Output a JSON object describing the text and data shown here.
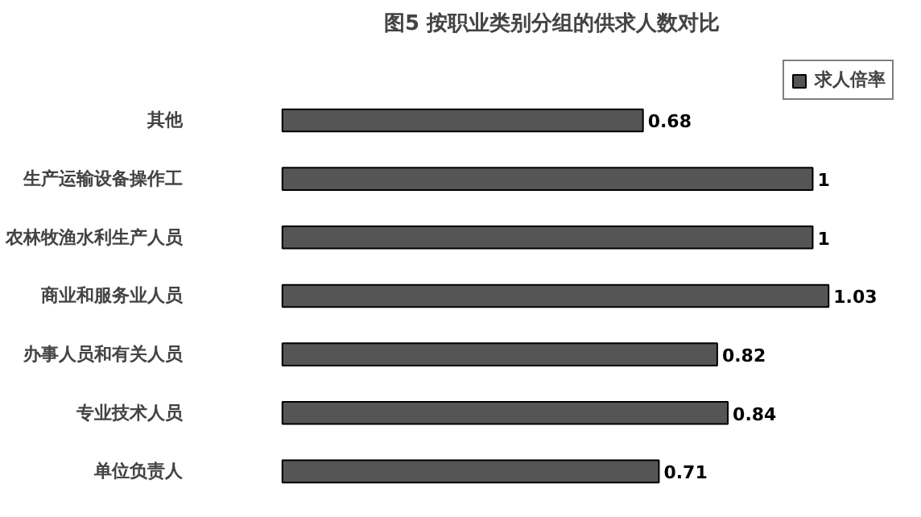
{
  "chart_data": {
    "type": "bar",
    "orientation": "horizontal",
    "title": "图5  按职业类别分组的供求人数对比",
    "categories": [
      "其他",
      "生产运输设备操作工",
      "农林牧渔水利生产人员",
      "商业和服务业人员",
      "办事人员和有关人员",
      "专业技术人员",
      "单位负责人"
    ],
    "series": [
      {
        "name": "求人倍率",
        "color": "#555555",
        "values": [
          0.68,
          1,
          1,
          1.03,
          0.82,
          0.84,
          0.71
        ]
      }
    ],
    "tick_labels": "y",
    "data_labels": true,
    "legend": "top right",
    "grid": false
  }
}
